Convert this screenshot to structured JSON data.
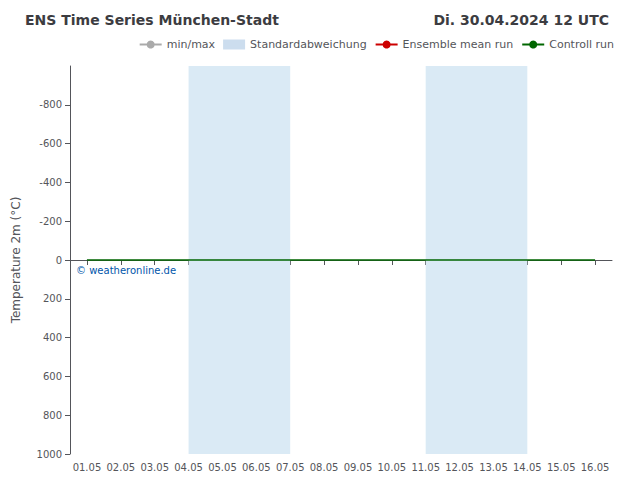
{
  "chart_data": {
    "type": "line",
    "title": "ENS Time Series München-Stadt",
    "subtitle": "Di. 30.04.2024 12 UTC",
    "ylabel": "Temperature 2m (°C)",
    "categories": [
      "01.05",
      "02.05",
      "03.05",
      "04.05",
      "05.05",
      "06.05",
      "07.05",
      "08.05",
      "09.05",
      "10.05",
      "11.05",
      "12.05",
      "13.05",
      "14.05",
      "15.05",
      "16.05"
    ],
    "ylim": [
      1000,
      -1000
    ],
    "yticks": [
      -800,
      -600,
      -400,
      -200,
      0,
      200,
      400,
      600,
      800,
      1000
    ],
    "grid": false,
    "legend": "upper right",
    "series": [
      {
        "name": "min/max",
        "type": "line",
        "color": "#aaaaaa",
        "values": [
          null,
          null,
          null,
          null,
          null,
          null,
          null,
          null,
          null,
          null,
          null,
          null,
          null,
          null,
          null,
          null
        ]
      },
      {
        "name": "Standardabweichung",
        "type": "area",
        "color": "#ccddee",
        "values": [
          null,
          null,
          null,
          null,
          null,
          null,
          null,
          null,
          null,
          null,
          null,
          null,
          null,
          null,
          null,
          null
        ]
      },
      {
        "name": "Ensemble mean run",
        "type": "line",
        "color": "#cc0000",
        "values": [
          null,
          null,
          null,
          null,
          null,
          null,
          null,
          null,
          null,
          null,
          null,
          null,
          null,
          null,
          null,
          null
        ]
      },
      {
        "name": "Controll run",
        "type": "line",
        "color": "#006600",
        "values": [
          0,
          0,
          0,
          0,
          0,
          0,
          0,
          0,
          0,
          0,
          0,
          0,
          0,
          0,
          0,
          0
        ]
      }
    ],
    "shaded_regions": {
      "color": "#daeaf5",
      "ranges": [
        [
          "04.05",
          "07.05"
        ],
        [
          "11.05",
          "14.05"
        ]
      ]
    },
    "annotations": [
      {
        "text": "© weatheronline.de",
        "color": "#0055aa"
      }
    ]
  }
}
